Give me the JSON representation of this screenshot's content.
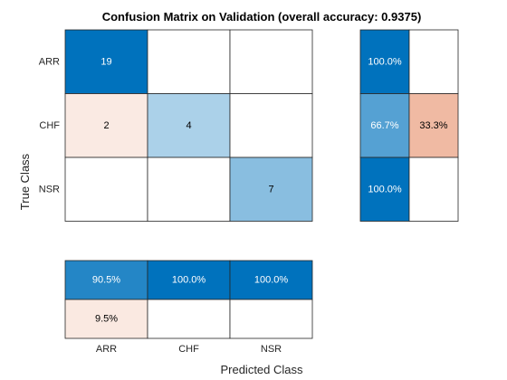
{
  "chart_data": {
    "type": "heatmap",
    "title": "Confusion Matrix on Validation (overall accuracy: 0.9375)",
    "xlabel": "Predicted Class",
    "ylabel": "True Class",
    "classes": [
      "ARR",
      "CHF",
      "NSR"
    ],
    "matrix": [
      [
        19,
        0,
        0
      ],
      [
        2,
        4,
        0
      ],
      [
        0,
        0,
        7
      ]
    ],
    "row_summary": [
      [
        100.0,
        0
      ],
      [
        66.7,
        33.3
      ],
      [
        100.0,
        0
      ]
    ],
    "column_summary": [
      [
        90.5,
        100.0,
        100.0
      ],
      [
        9.5,
        0,
        0
      ]
    ],
    "colors": {
      "correct_max": "#0072bd",
      "correct_min": "#ffffff",
      "incorrect_max": "#d95319",
      "incorrect_min": "#ffffff",
      "grid": "#262626",
      "text_dark": "#000000",
      "text_light": "#ffffff"
    }
  }
}
